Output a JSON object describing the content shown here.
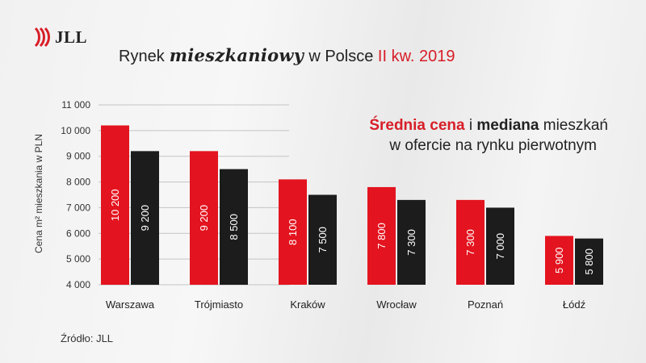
{
  "brand": {
    "logo_text": "JLL",
    "accent": "#d81e28"
  },
  "title": {
    "part1": "Rynek",
    "script": "mieszkaniowy",
    "part2": "w Polsce",
    "period": "II kw. 2019"
  },
  "subtitle": {
    "red": "Średnia cena",
    "mid1": " i ",
    "bold": "mediana",
    "rest1": " mieszkań",
    "line2": "w ofercie na rynku pierwotnym"
  },
  "source": "Źródło: JLL",
  "chart_data": {
    "type": "bar",
    "ylabel": "Cena m² mieszkania w PLN",
    "ylim": [
      4000,
      11000
    ],
    "yticks": [
      4000,
      5000,
      6000,
      7000,
      8000,
      9000,
      10000,
      11000
    ],
    "ytick_labels": [
      "4 000",
      "5 000",
      "6 000",
      "7 000",
      "8 000",
      "9 000",
      "10 000",
      "11 000"
    ],
    "categories": [
      "Warszawa",
      "Trójmiasto",
      "Kraków",
      "Wrocław",
      "Poznań",
      "Łódź"
    ],
    "series": [
      {
        "color": "#e3141f",
        "values": [
          10200,
          9200,
          8100,
          7800,
          7300,
          5900
        ],
        "labels": [
          "10 200",
          "9 200",
          "8 100",
          "7 800",
          "7 300",
          "5 900"
        ]
      },
      {
        "color": "#1c1c1c",
        "values": [
          9200,
          8500,
          7500,
          7300,
          7000,
          5800
        ],
        "labels": [
          "9 200",
          "8 500",
          "7 500",
          "7 300",
          "7 000",
          "5 800"
        ]
      }
    ]
  }
}
